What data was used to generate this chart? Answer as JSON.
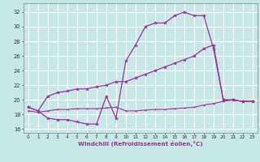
{
  "bg_color": "#c8e8e8",
  "grid_color": "#ffffff",
  "line_color": "#993399",
  "xlim": [
    -0.5,
    23.5
  ],
  "ylim": [
    15.5,
    33.2
  ],
  "xticks": [
    0,
    1,
    2,
    3,
    4,
    5,
    6,
    7,
    8,
    9,
    10,
    11,
    12,
    13,
    14,
    15,
    16,
    17,
    18,
    19,
    20,
    21,
    22,
    23
  ],
  "yticks": [
    16,
    18,
    20,
    22,
    24,
    26,
    28,
    30,
    32
  ],
  "xlabel": "Windchill (Refroidissement éolien,°C)",
  "curve1_x": [
    0,
    1,
    2,
    3,
    4,
    5,
    6,
    7,
    8,
    9,
    10,
    11,
    12,
    13,
    14,
    15,
    16,
    17,
    18,
    19,
    20,
    21,
    22,
    23
  ],
  "curve1_y": [
    19.0,
    18.5,
    17.5,
    17.3,
    17.3,
    17.0,
    16.7,
    16.7,
    20.5,
    17.5,
    25.3,
    27.5,
    30.0,
    30.5,
    30.5,
    31.5,
    32.0,
    31.5,
    31.5,
    27.0,
    20.0,
    20.0,
    19.8,
    19.8
  ],
  "curve2_x": [
    0,
    1,
    2,
    3,
    4,
    5,
    6,
    7,
    8,
    9,
    10,
    11,
    12,
    13,
    14,
    15,
    16,
    17,
    18,
    19,
    20,
    21,
    22,
    23
  ],
  "curve2_y": [
    19.0,
    18.5,
    20.5,
    21.0,
    21.2,
    21.5,
    21.5,
    21.8,
    22.0,
    22.5,
    22.5,
    23.0,
    23.5,
    24.0,
    24.5,
    25.0,
    25.5,
    26.0,
    27.0,
    27.5,
    20.0,
    20.0,
    19.8,
    19.8
  ],
  "curve3_x": [
    0,
    1,
    2,
    3,
    4,
    5,
    6,
    7,
    8,
    9,
    10,
    11,
    12,
    13,
    14,
    15,
    16,
    17,
    18,
    19,
    20,
    21,
    22,
    23
  ],
  "curve3_y": [
    18.5,
    18.3,
    18.5,
    18.7,
    18.7,
    18.8,
    18.8,
    18.8,
    18.9,
    19.0,
    18.5,
    18.5,
    18.6,
    18.7,
    18.7,
    18.8,
    18.9,
    19.0,
    19.3,
    19.5,
    19.8,
    20.0,
    19.8,
    19.8
  ]
}
